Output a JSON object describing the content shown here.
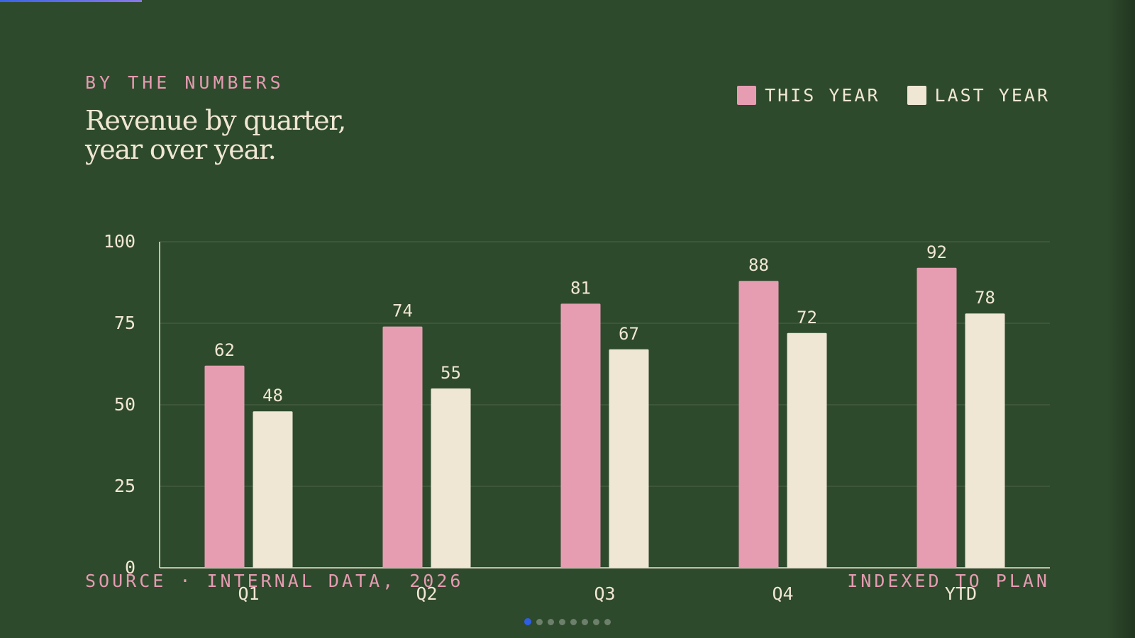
{
  "slide": {
    "eyebrow": "BY THE NUMBERS",
    "title_lines": [
      "Revenue by quarter,",
      "year over year."
    ],
    "source": "SOURCE · INTERNAL DATA, 2026",
    "note": "INDEXED TO PLAN",
    "progress": 0.125,
    "slide_count": 8,
    "current_slide": 1
  },
  "colors": {
    "background": "#2e4a2c",
    "this_year": "#e69db2",
    "last_year": "#efe7d4",
    "text": "#f1e7d3",
    "accent": "#e59bb1",
    "active_dot": "#2f5ee6"
  },
  "chart_data": {
    "type": "bar",
    "categories": [
      "Q1",
      "Q2",
      "Q3",
      "Q4",
      "YTD"
    ],
    "series": [
      {
        "name": "THIS YEAR",
        "values": [
          62,
          74,
          81,
          88,
          92
        ]
      },
      {
        "name": "LAST YEAR",
        "values": [
          48,
          55,
          67,
          72,
          78
        ]
      }
    ],
    "yticks": [
      0,
      25,
      50,
      75,
      100
    ],
    "ylim": [
      0,
      100
    ],
    "grid": true,
    "legend_position": "top-right",
    "data_labels": true
  }
}
